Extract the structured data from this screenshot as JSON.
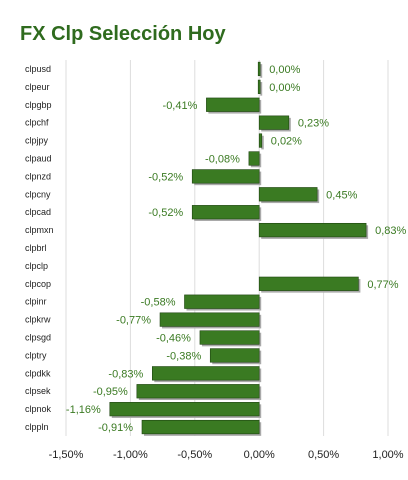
{
  "chart_data": {
    "type": "bar",
    "orientation": "horizontal",
    "title": "FX Clp Selección Hoy",
    "categories": [
      "clpusd",
      "clpeur",
      "clpgbp",
      "clpchf",
      "clpjpy",
      "clpaud",
      "clpnzd",
      "clpcny",
      "clpcad",
      "clpmxn",
      "clpbrl",
      "clpclp",
      "clpcop",
      "clpinr",
      "clpkrw",
      "clpsgd",
      "clptry",
      "clpdkk",
      "clpsek",
      "clpnok",
      "clppln"
    ],
    "values": [
      0.0,
      0.0,
      -0.41,
      0.23,
      0.02,
      -0.08,
      -0.52,
      0.45,
      -0.52,
      0.83,
      null,
      null,
      0.77,
      -0.58,
      -0.77,
      -0.46,
      -0.38,
      -0.83,
      -0.95,
      -1.16,
      -0.91
    ],
    "labels": [
      "0,00%",
      "0,00%",
      "-0,41%",
      "0,23%",
      "0,02%",
      "-0,08%",
      "-0,52%",
      "0,45%",
      "-0,52%",
      "0,83%",
      "",
      "",
      "0,77%",
      "-0,58%",
      "-0,77%",
      "-0,46%",
      "-0,38%",
      "-0,83%",
      "-0,95%",
      "-1,16%",
      "-0,91%"
    ],
    "xlim": [
      -1.5,
      1.0
    ],
    "xticks": [
      -1.5,
      -1.0,
      -0.5,
      0.0,
      0.5,
      1.0
    ],
    "xtick_labels": [
      "-1,50%",
      "-1,00%",
      "-0,50%",
      "0,00%",
      "0,50%",
      "1,00%"
    ],
    "grid": true,
    "colors": {
      "bar": "#3a7a22",
      "bar_edge": "#1e4410",
      "shadow": "#a9a9a9",
      "grid": "#dddddd",
      "title": "#2f6b1e",
      "value_label": "#3a7a22"
    }
  }
}
